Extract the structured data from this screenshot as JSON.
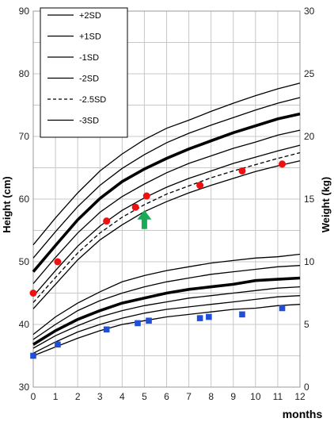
{
  "chart_data": {
    "type": "line",
    "x": [
      0,
      1,
      2,
      3,
      4,
      5,
      6,
      7,
      8,
      9,
      10,
      11,
      12
    ],
    "x_ticks": [
      "0",
      "1",
      "2",
      "3",
      "4",
      "5",
      "6",
      "7",
      "8",
      "9",
      "10",
      "11",
      "12"
    ],
    "xlabel": "months",
    "xlim": [
      0,
      12
    ],
    "left_axis": {
      "label": "Height (cm)",
      "lim": [
        30,
        90
      ],
      "ticks": [
        "30",
        "40",
        "50",
        "60",
        "70",
        "80",
        "90"
      ]
    },
    "right_axis": {
      "label": "Weight (kg)",
      "lim": [
        0,
        30
      ],
      "ticks": [
        "0",
        "5",
        "10",
        "15",
        "20",
        "25",
        "30"
      ]
    },
    "grid": true,
    "legend": {
      "placement": "top-left",
      "entries": [
        {
          "label": "+2SD",
          "style": "solid"
        },
        {
          "label": "+1SD",
          "style": "solid"
        },
        {
          "label": "-1SD",
          "style": "solid"
        },
        {
          "label": "-2SD",
          "style": "solid"
        },
        {
          "label": "-2.5SD",
          "style": "dashed"
        },
        {
          "label": "-3SD",
          "style": "solid"
        }
      ]
    },
    "height_curves": [
      {
        "sd": "+2SD",
        "style": "solid",
        "values": [
          52.7,
          57.0,
          61.0,
          64.5,
          67.2,
          69.5,
          71.3,
          72.6,
          74.0,
          75.3,
          76.5,
          77.6,
          78.5
        ]
      },
      {
        "sd": "+1SD",
        "style": "solid",
        "values": [
          50.6,
          54.8,
          58.8,
          62.2,
          64.9,
          67.1,
          69.0,
          70.5,
          71.8,
          73.0,
          74.2,
          75.3,
          76.2
        ]
      },
      {
        "sd": "median",
        "style": "thick",
        "values": [
          48.4,
          52.6,
          56.7,
          60.1,
          62.8,
          64.8,
          66.5,
          68.0,
          69.3,
          70.6,
          71.7,
          72.8,
          73.6
        ]
      },
      {
        "sd": "-1SD",
        "style": "solid",
        "values": [
          46.5,
          50.7,
          54.6,
          57.9,
          60.4,
          62.4,
          64.2,
          65.7,
          66.9,
          68.1,
          69.1,
          70.2,
          71.0
        ]
      },
      {
        "sd": "-2SD",
        "style": "solid",
        "values": [
          44.5,
          48.6,
          52.5,
          55.7,
          58.2,
          60.2,
          61.9,
          63.3,
          64.5,
          65.7,
          66.7,
          67.7,
          68.6
        ]
      },
      {
        "sd": "-2.5SD",
        "style": "dashed",
        "values": [
          43.5,
          47.5,
          51.4,
          54.6,
          57.1,
          59.1,
          60.8,
          62.1,
          63.4,
          64.5,
          65.5,
          66.5,
          67.4
        ]
      },
      {
        "sd": "-3SD",
        "style": "solid",
        "values": [
          42.5,
          46.4,
          50.3,
          53.5,
          55.9,
          58.0,
          59.6,
          61.0,
          62.2,
          63.3,
          64.4,
          65.3,
          66.1
        ]
      }
    ],
    "weight_curves": [
      {
        "sd": "+2SD",
        "style": "solid",
        "values": [
          4.2,
          5.6,
          6.7,
          7.6,
          8.4,
          8.9,
          9.3,
          9.6,
          9.9,
          10.1,
          10.3,
          10.4,
          10.6
        ]
      },
      {
        "sd": "+1SD",
        "style": "solid",
        "values": [
          3.8,
          5.0,
          6.1,
          6.9,
          7.5,
          8.0,
          8.4,
          8.7,
          9.0,
          9.2,
          9.4,
          9.6,
          9.7
        ]
      },
      {
        "sd": "median",
        "style": "thick",
        "values": [
          3.4,
          4.5,
          5.4,
          6.1,
          6.7,
          7.1,
          7.5,
          7.8,
          8.0,
          8.2,
          8.5,
          8.6,
          8.7
        ]
      },
      {
        "sd": "-1SD",
        "style": "solid",
        "values": [
          3.1,
          4.1,
          4.9,
          5.6,
          6.1,
          6.5,
          6.8,
          7.1,
          7.3,
          7.5,
          7.7,
          7.9,
          8.0
        ]
      },
      {
        "sd": "-2SD",
        "style": "solid",
        "values": [
          2.7,
          3.6,
          4.4,
          5.0,
          5.5,
          5.9,
          6.2,
          6.4,
          6.6,
          6.8,
          7.0,
          7.2,
          7.3
        ]
      },
      {
        "sd": "-3SD",
        "style": "solid",
        "values": [
          2.5,
          3.2,
          3.9,
          4.5,
          5.0,
          5.3,
          5.6,
          5.8,
          6.0,
          6.2,
          6.3,
          6.5,
          6.6
        ]
      }
    ],
    "height_points": {
      "marker": "circle",
      "color": "#ee1111",
      "x": [
        0.0,
        1.1,
        3.3,
        4.6,
        5.1,
        7.5,
        9.4,
        11.2
      ],
      "y": [
        45.0,
        50.0,
        56.5,
        58.7,
        60.5,
        62.2,
        64.5,
        65.6
      ]
    },
    "weight_points": {
      "marker": "square",
      "color": "#1f4fd6",
      "x": [
        0.0,
        1.1,
        3.3,
        4.7,
        5.2,
        7.5,
        7.9,
        9.4,
        11.2
      ],
      "y": [
        2.5,
        3.4,
        4.6,
        5.1,
        5.3,
        5.5,
        5.6,
        5.8,
        6.3
      ]
    },
    "annotation": {
      "type": "arrow-up",
      "color": "#1aaa55",
      "x": 5.0,
      "left_axis_value": 57.0
    }
  }
}
